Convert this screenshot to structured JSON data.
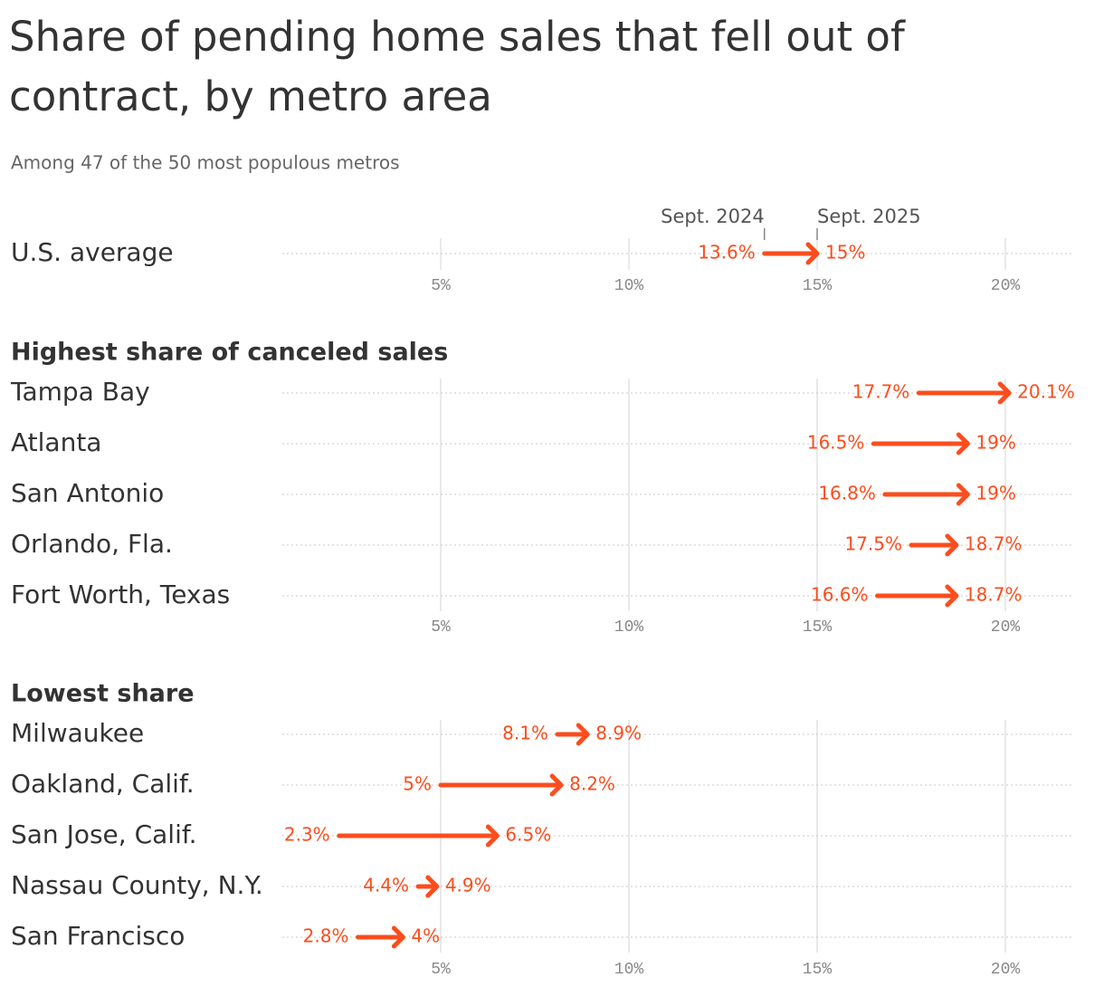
{
  "title": "Share of pending home sales that fell out of contract, by metro area",
  "subtitle": "Among 47 of the 50 most populous metros",
  "chart_data": [
    {
      "type": "arrow",
      "color": "#fb4d1d",
      "categories": [
        "U.S. average"
      ],
      "series": [
        {
          "name": "Sept. 2024",
          "values": [
            13.6
          ],
          "value_labels": [
            "13.6%"
          ]
        },
        {
          "name": "Sept. 2025",
          "values": [
            15
          ],
          "value_labels": [
            "15%"
          ]
        }
      ],
      "xlim": [
        0,
        22
      ],
      "xticks": [
        {
          "value": 5,
          "label": "5%"
        },
        {
          "value": 10,
          "label": "10%"
        },
        {
          "value": 15,
          "label": "15%"
        },
        {
          "value": 20,
          "label": "20%"
        }
      ],
      "grid": true
    },
    {
      "type": "arrow",
      "color": "#fb4d1d",
      "title": "Highest share of canceled sales",
      "categories": [
        "Tampa Bay",
        "Atlanta",
        "San Antonio",
        "Orlando, Fla.",
        "Fort Worth, Texas"
      ],
      "series": [
        {
          "values": [
            17.7,
            16.5,
            16.8,
            17.5,
            16.6
          ],
          "value_labels": [
            "17.7%",
            "16.5%",
            "16.8%",
            "17.5%",
            "16.6%"
          ]
        },
        {
          "values": [
            20.1,
            19,
            19,
            18.7,
            18.7
          ],
          "value_labels": [
            "20.1%",
            "19%",
            "19%",
            "18.7%",
            "18.7%"
          ]
        }
      ],
      "xlim": [
        0,
        22
      ],
      "xticks": [
        {
          "value": 5,
          "label": "5%"
        },
        {
          "value": 10,
          "label": "10%"
        },
        {
          "value": 15,
          "label": "15%"
        },
        {
          "value": 20,
          "label": "20%"
        }
      ],
      "grid": true
    },
    {
      "type": "arrow",
      "color": "#fb4d1d",
      "title": "Lowest share",
      "categories": [
        "Milwaukee",
        "Oakland, Calif.",
        "San Jose, Calif.",
        "Nassau County, N.Y.",
        "San Francisco"
      ],
      "series": [
        {
          "values": [
            8.1,
            5,
            2.3,
            4.4,
            2.8
          ],
          "value_labels": [
            "8.1%",
            "5%",
            "2.3%",
            "4.4%",
            "2.8%"
          ]
        },
        {
          "values": [
            8.9,
            8.2,
            6.5,
            4.9,
            4
          ],
          "value_labels": [
            "8.9%",
            "8.2%",
            "6.5%",
            "4.9%",
            "4%"
          ]
        }
      ],
      "xlim": [
        0,
        22
      ],
      "xticks": [
        {
          "value": 5,
          "label": "5%"
        },
        {
          "value": 10,
          "label": "10%"
        },
        {
          "value": 15,
          "label": "15%"
        },
        {
          "value": 20,
          "label": "20%"
        }
      ],
      "grid": true
    }
  ]
}
